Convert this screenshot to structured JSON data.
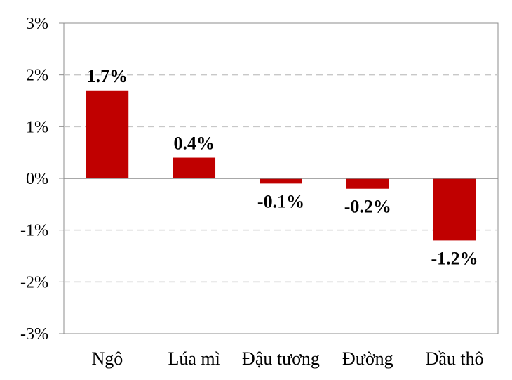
{
  "chart_data": {
    "type": "bar",
    "categories": [
      "Ngô",
      "Lúa mì",
      "Đậu tương",
      "Đường",
      "Dầu thô"
    ],
    "values": [
      1.7,
      0.4,
      -0.1,
      -0.2,
      -1.2
    ],
    "data_labels": [
      "1.7%",
      "0.4%",
      "-0.1%",
      "-0.2%",
      "-1.2%"
    ],
    "y_ticks": [
      3,
      2,
      1,
      0,
      -1,
      -2,
      -3
    ],
    "y_tick_labels": [
      "3%",
      "2%",
      "1%",
      "0%",
      "-1%",
      "-2%",
      "-3%"
    ],
    "ylim": [
      -3,
      3
    ],
    "grid": true,
    "bar_color": "#c00000",
    "title": "",
    "xlabel": "",
    "ylabel": ""
  }
}
